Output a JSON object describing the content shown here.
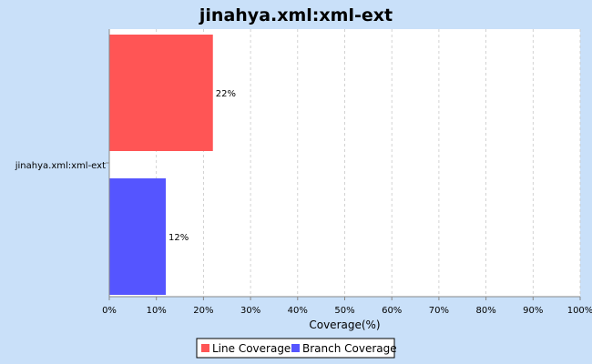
{
  "chart_data": {
    "type": "bar",
    "orientation": "horizontal",
    "title": "jinahya.xml:xml-ext",
    "categories": [
      "jinahya.xml:xml-ext"
    ],
    "series": [
      {
        "name": "Line Coverage",
        "values": [
          22
        ],
        "color": "#ff5555",
        "label": "22%"
      },
      {
        "name": "Branch Coverage",
        "values": [
          12
        ],
        "color": "#5555ff",
        "label": "12%"
      }
    ],
    "xlabel": "Coverage(%)",
    "ylabel": "",
    "xlim": [
      0,
      100
    ],
    "ticks": [
      "0%",
      "10%",
      "20%",
      "30%",
      "40%",
      "50%",
      "60%",
      "70%",
      "80%",
      "90%",
      "100%"
    ],
    "grid": true,
    "legend": "bottom-center"
  }
}
